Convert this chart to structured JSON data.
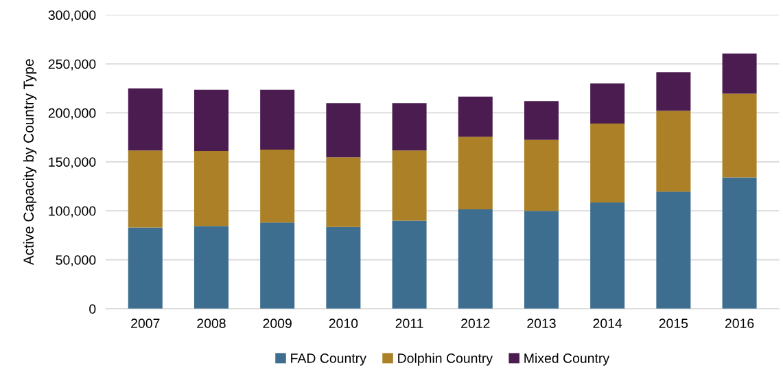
{
  "chart_data": {
    "type": "bar",
    "stacked": true,
    "ylabel": "Active Capacity by Country Type",
    "categories": [
      "2007",
      "2008",
      "2009",
      "2010",
      "2011",
      "2012",
      "2013",
      "2014",
      "2015",
      "2016"
    ],
    "series": [
      {
        "name": "FAD Country",
        "color": "#3d6e8f",
        "values": [
          83000,
          84500,
          88000,
          83500,
          90000,
          101500,
          100000,
          108500,
          119500,
          134000
        ]
      },
      {
        "name": "Dolphin Country",
        "color": "#ab8026",
        "values": [
          78500,
          76500,
          74500,
          71000,
          71500,
          74000,
          72500,
          80500,
          82500,
          85500
        ]
      },
      {
        "name": "Mixed Country",
        "color": "#4b1c50",
        "values": [
          63500,
          62500,
          61000,
          55500,
          48500,
          41000,
          39500,
          41000,
          39500,
          41000
        ]
      }
    ],
    "ylim": [
      0,
      300000
    ],
    "yticks": [
      {
        "value": 0,
        "label": "0"
      },
      {
        "value": 50000,
        "label": "50,000"
      },
      {
        "value": 100000,
        "label": "100,000"
      },
      {
        "value": 150000,
        "label": "150,000"
      },
      {
        "value": 200000,
        "label": "200,000"
      },
      {
        "value": 250000,
        "label": "250,000"
      },
      {
        "value": 300000,
        "label": "300,000"
      }
    ],
    "grid": "y",
    "legend": "bottom"
  }
}
